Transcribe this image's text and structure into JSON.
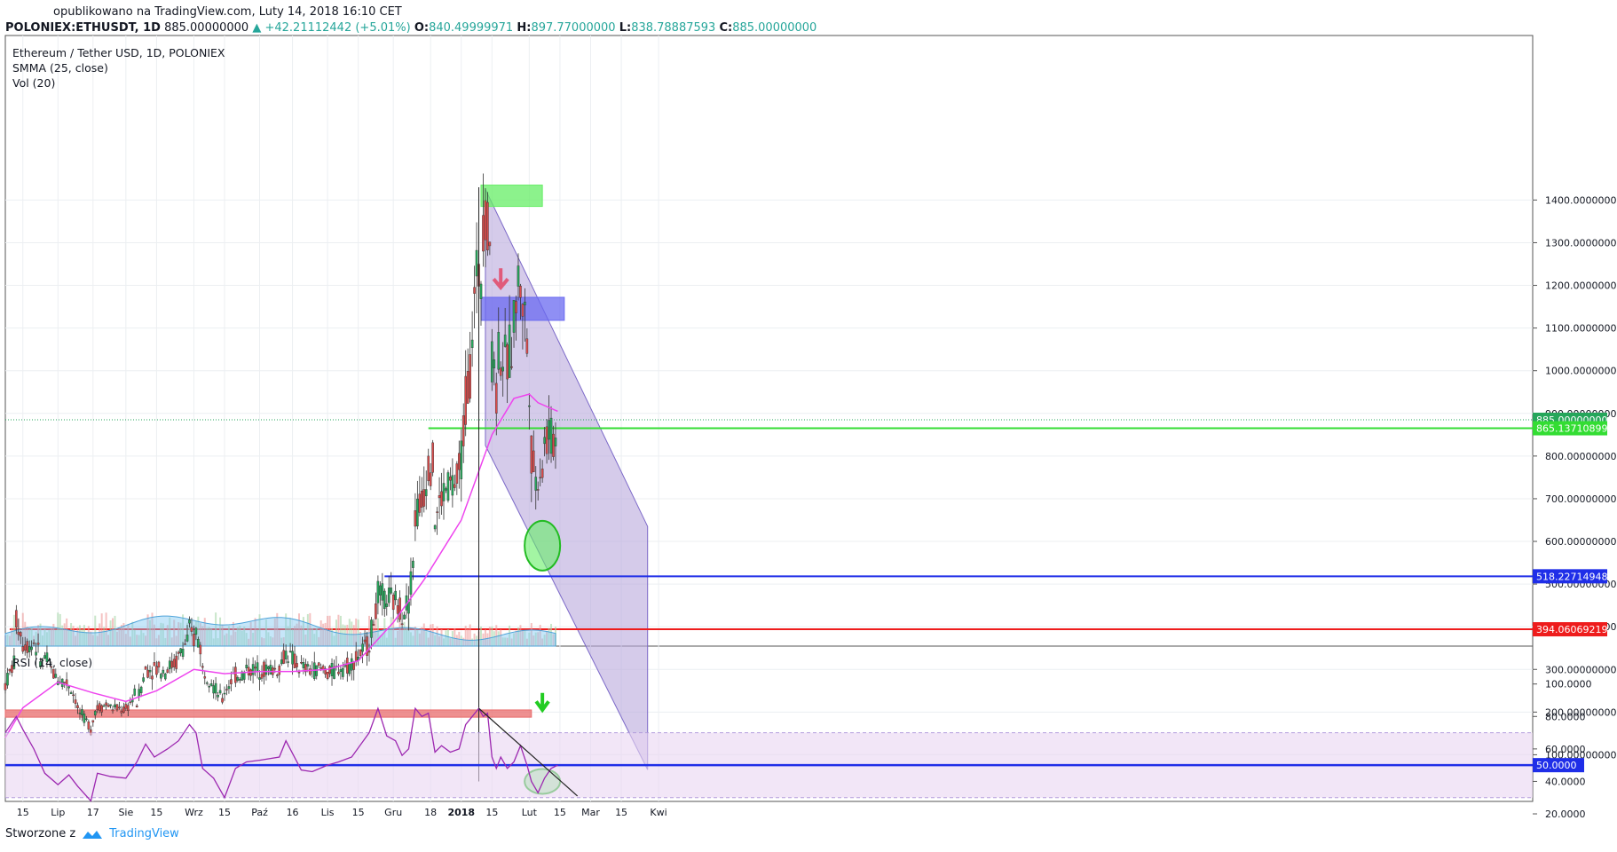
{
  "header": {
    "published": "opublikowano na TradingView.com, Luty 14, 2018 16:10 CET",
    "symbol": "POLONIEX:ETHUSDT, 1D",
    "last": "885.00000000",
    "change": "+42.21112442 (+5.01%)",
    "o_label": "O:",
    "o": "840.49999971",
    "h_label": "H:",
    "h": "897.77000000",
    "l_label": "L:",
    "l": "838.78887593",
    "c_label": "C:",
    "c": "885.00000000"
  },
  "legend": {
    "title": "Ethereum / Tether USD, 1D, POLONIEX",
    "smma": "SMMA (25, close)",
    "vol": "Vol (20)",
    "rsi": "RSI (14, close)"
  },
  "footer": {
    "created": "Stworzone z",
    "brand": "TradingView"
  },
  "colors": {
    "up": "#26a65b",
    "down": "#d94b4b",
    "smma": "#ee44ee",
    "rsi": "#9c27b0",
    "channel_fill": "#b9a9dc",
    "blue_line": "#1f2ee8",
    "red_line": "#ee1c1c",
    "green_line": "#33dd33"
  },
  "chart_data": [
    {
      "type": "candlestick",
      "title": "Ethereum / Tether USD, 1D, POLONIEX",
      "y_axis_ticks": [
        "1400.00000000",
        "1300.00000000",
        "1200.00000000",
        "1100.00000000",
        "1000.00000000",
        "900.00000000",
        "800.00000000",
        "700.00000000",
        "600.00000000",
        "500.00000000",
        "400.00000000",
        "300.00000000",
        "200.00000000",
        "100.00000000"
      ],
      "y_range": [
        65,
        1500
      ],
      "x_axis_labels": [
        "15",
        "Lip",
        "17",
        "Sie",
        "15",
        "Wrz",
        "15",
        "Paź",
        "16",
        "Lis",
        "15",
        "Gru",
        "18",
        "2018",
        "15",
        "Lut",
        "15",
        "Mar",
        "15",
        "Kwi"
      ],
      "x_label_dates": [
        "2017-06-15",
        "2017-07-01",
        "2017-07-17",
        "2017-08-01",
        "2017-08-15",
        "2017-09-01",
        "2017-09-15",
        "2017-10-01",
        "2017-10-16",
        "2017-11-01",
        "2017-11-15",
        "2017-12-01",
        "2017-12-18",
        "2018-01-01",
        "2018-01-15",
        "2018-02-01",
        "2018-02-15",
        "2018-03-01",
        "2018-03-15",
        "2018-04-01"
      ],
      "last_price": 885.0,
      "price_labels": [
        {
          "value": 885.0,
          "text": "885.00000000",
          "color": "#26a65b"
        },
        {
          "value": 865.13710899,
          "text": "865.13710899",
          "color": "#33dd33"
        },
        {
          "value": 518.22714948,
          "text": "518.22714948",
          "color": "#1f2ee8"
        },
        {
          "value": 394.06069219,
          "text": "394.06069219",
          "color": "#ee1c1c"
        }
      ],
      "horizontal_levels": [
        {
          "value": 865.14,
          "from": "2017-12-17",
          "to": "2018-02-28",
          "color": "#33dd33"
        },
        {
          "value": 518.23,
          "from": "2017-11-27",
          "to": "2018-02-28",
          "color": "#1f2ee8"
        },
        {
          "value": 394.06,
          "from": "2017-06-09",
          "to": "2018-02-28",
          "color": "#ee1c1c"
        }
      ],
      "zones": [
        {
          "from": "2018-01-10",
          "to": "2018-02-07",
          "low": 1385,
          "high": 1435,
          "color": "#66ee66"
        },
        {
          "from": "2018-01-10",
          "to": "2018-02-17",
          "low": 1118,
          "high": 1172,
          "color": "#6a6af0"
        },
        {
          "from": "2017-06-07",
          "to": "2018-02-02",
          "low": 188,
          "high": 205,
          "color": "#e86b6b"
        }
      ],
      "channel": {
        "upper": [
          [
            "2018-01-12",
            1425
          ],
          [
            "2018-03-27",
            635
          ]
        ],
        "lower": [
          [
            "2018-01-12",
            825
          ],
          [
            "2018-03-27",
            65
          ]
        ]
      },
      "vertical_marker": "2018-01-09",
      "ohlc_path": [
        [
          "2017-06-07",
          250,
          265
        ],
        [
          "2017-06-12",
          330,
          415
        ],
        [
          "2017-06-15",
          370,
          360
        ],
        [
          "2017-06-20",
          355,
          365
        ],
        [
          "2017-06-25",
          300,
          330
        ],
        [
          "2017-07-01",
          270,
          280
        ],
        [
          "2017-07-06",
          265,
          265
        ],
        [
          "2017-07-10",
          220,
          205
        ],
        [
          "2017-07-16",
          165,
          155
        ],
        [
          "2017-07-19",
          230,
          210
        ],
        [
          "2017-07-25",
          220,
          210
        ],
        [
          "2017-08-01",
          205,
          205
        ],
        [
          "2017-08-06",
          250,
          220
        ],
        [
          "2017-08-10",
          300,
          300
        ],
        [
          "2017-08-14",
          300,
          305
        ],
        [
          "2017-08-20",
          295,
          305
        ],
        [
          "2017-08-25",
          320,
          330
        ],
        [
          "2017-08-30",
          380,
          390
        ],
        [
          "2017-09-02",
          360,
          390
        ],
        [
          "2017-09-05",
          330,
          300
        ],
        [
          "2017-09-10",
          270,
          260
        ],
        [
          "2017-09-15",
          220,
          250
        ],
        [
          "2017-09-20",
          290,
          285
        ],
        [
          "2017-09-25",
          290,
          300
        ],
        [
          "2017-10-01",
          300,
          300
        ],
        [
          "2017-10-10",
          300,
          305
        ],
        [
          "2017-10-13",
          340,
          340
        ],
        [
          "2017-10-20",
          300,
          305
        ],
        [
          "2017-10-25",
          295,
          300
        ],
        [
          "2017-11-01",
          300,
          290
        ],
        [
          "2017-11-06",
          300,
          305
        ],
        [
          "2017-11-12",
          310,
          315
        ],
        [
          "2017-11-20",
          360,
          365
        ],
        [
          "2017-11-24",
          470,
          475
        ],
        [
          "2017-11-28",
          460,
          470
        ],
        [
          "2017-12-02",
          455,
          460
        ],
        [
          "2017-12-05",
          440,
          430
        ],
        [
          "2017-12-08",
          465,
          460
        ],
        [
          "2017-12-11",
          600,
          660
        ],
        [
          "2017-12-14",
          700,
          690
        ],
        [
          "2017-12-17",
          785,
          790
        ],
        [
          "2017-12-20",
          780,
          650
        ],
        [
          "2017-12-23",
          700,
          705
        ],
        [
          "2017-12-27",
          740,
          730
        ],
        [
          "2017-12-31",
          740,
          755
        ],
        [
          "2018-01-03",
          900,
          930
        ],
        [
          "2018-01-06",
          1040,
          1100
        ],
        [
          "2018-01-09",
          1270,
          1230
        ],
        [
          "2018-01-11",
          1250,
          1380
        ],
        [
          "2018-01-13",
          1380,
          1330
        ],
        [
          "2018-01-15",
          1300,
          1020
        ],
        [
          "2018-01-17",
          1050,
          950
        ],
        [
          "2018-01-19",
          1150,
          1050
        ],
        [
          "2018-01-22",
          1000,
          1020
        ],
        [
          "2018-01-25",
          1080,
          1120
        ],
        [
          "2018-01-28",
          1250,
          1200
        ],
        [
          "2018-01-31",
          1100,
          1050
        ],
        [
          "2018-02-02",
          900,
          810
        ],
        [
          "2018-02-05",
          700,
          760
        ],
        [
          "2018-02-08",
          790,
          830
        ],
        [
          "2018-02-11",
          860,
          840
        ],
        [
          "2018-02-14",
          840,
          885
        ]
      ],
      "smma_path": [
        [
          "2017-06-07",
          140
        ],
        [
          "2017-06-15",
          210
        ],
        [
          "2017-07-01",
          270
        ],
        [
          "2017-07-17",
          245
        ],
        [
          "2017-08-01",
          225
        ],
        [
          "2017-08-15",
          250
        ],
        [
          "2017-09-01",
          300
        ],
        [
          "2017-09-15",
          290
        ],
        [
          "2017-10-01",
          295
        ],
        [
          "2017-10-16",
          295
        ],
        [
          "2017-11-01",
          300
        ],
        [
          "2017-11-15",
          320
        ],
        [
          "2017-12-01",
          410
        ],
        [
          "2017-12-15",
          510
        ],
        [
          "2018-01-01",
          650
        ],
        [
          "2018-01-15",
          850
        ],
        [
          "2018-01-25",
          935
        ],
        [
          "2018-02-01",
          945
        ],
        [
          "2018-02-05",
          925
        ],
        [
          "2018-02-14",
          905
        ]
      ],
      "volume_series": "Vol (20)",
      "smma_series": "SMMA (25, close)"
    },
    {
      "type": "line",
      "title": "RSI (14, close)",
      "y_axis_ticks": [
        "100.0000",
        "80.0000",
        "60.0000",
        "50.0000",
        "40.0000",
        "20.0000"
      ],
      "y_range": [
        15,
        105
      ],
      "band": [
        30,
        70
      ],
      "level": 50,
      "level_label": "50.0000",
      "values": [
        [
          "2017-06-07",
          70
        ],
        [
          "2017-06-12",
          80
        ],
        [
          "2017-06-15",
          72
        ],
        [
          "2017-06-20",
          60
        ],
        [
          "2017-06-25",
          45
        ],
        [
          "2017-07-01",
          38
        ],
        [
          "2017-07-06",
          44
        ],
        [
          "2017-07-10",
          37
        ],
        [
          "2017-07-16",
          28
        ],
        [
          "2017-07-19",
          45
        ],
        [
          "2017-07-25",
          43
        ],
        [
          "2017-08-01",
          42
        ],
        [
          "2017-08-06",
          52
        ],
        [
          "2017-08-10",
          63
        ],
        [
          "2017-08-14",
          55
        ],
        [
          "2017-08-20",
          60
        ],
        [
          "2017-08-25",
          65
        ],
        [
          "2017-08-30",
          75
        ],
        [
          "2017-09-02",
          70
        ],
        [
          "2017-09-05",
          48
        ],
        [
          "2017-09-10",
          42
        ],
        [
          "2017-09-15",
          30
        ],
        [
          "2017-09-20",
          48
        ],
        [
          "2017-09-25",
          52
        ],
        [
          "2017-10-01",
          53
        ],
        [
          "2017-10-10",
          55
        ],
        [
          "2017-10-13",
          65
        ],
        [
          "2017-10-20",
          47
        ],
        [
          "2017-10-25",
          46
        ],
        [
          "2017-11-01",
          50
        ],
        [
          "2017-11-06",
          52
        ],
        [
          "2017-11-12",
          55
        ],
        [
          "2017-11-20",
          70
        ],
        [
          "2017-11-24",
          85
        ],
        [
          "2017-11-28",
          68
        ],
        [
          "2017-12-02",
          65
        ],
        [
          "2017-12-05",
          56
        ],
        [
          "2017-12-08",
          60
        ],
        [
          "2017-12-11",
          85
        ],
        [
          "2017-12-14",
          80
        ],
        [
          "2017-12-17",
          82
        ],
        [
          "2017-12-20",
          58
        ],
        [
          "2017-12-23",
          62
        ],
        [
          "2017-12-27",
          58
        ],
        [
          "2017-12-31",
          60
        ],
        [
          "2018-01-03",
          75
        ],
        [
          "2018-01-06",
          80
        ],
        [
          "2018-01-09",
          85
        ],
        [
          "2018-01-11",
          80
        ],
        [
          "2018-01-13",
          82
        ],
        [
          "2018-01-15",
          55
        ],
        [
          "2018-01-17",
          48
        ],
        [
          "2018-01-19",
          55
        ],
        [
          "2018-01-22",
          48
        ],
        [
          "2018-01-25",
          52
        ],
        [
          "2018-01-28",
          62
        ],
        [
          "2018-01-31",
          50
        ],
        [
          "2018-02-02",
          40
        ],
        [
          "2018-02-05",
          33
        ],
        [
          "2018-02-08",
          42
        ],
        [
          "2018-02-11",
          48
        ],
        [
          "2018-02-14",
          50
        ]
      ],
      "trendline": [
        [
          "2018-01-09",
          85
        ],
        [
          "2018-02-23",
          31
        ]
      ]
    }
  ]
}
